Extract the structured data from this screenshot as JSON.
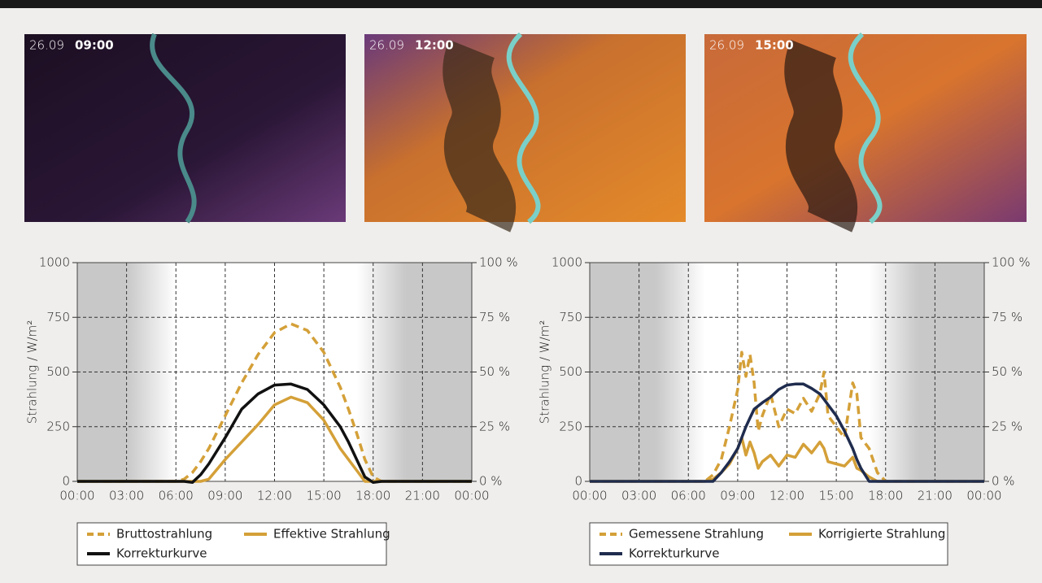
{
  "images": [
    {
      "date": "26.09",
      "time": "09:00"
    },
    {
      "date": "26.09",
      "time": "12:00"
    },
    {
      "date": "26.09",
      "time": "15:00"
    }
  ],
  "chart_data": [
    {
      "type": "line",
      "y_label": "Strahlung / W/m²",
      "legend": "below",
      "grid": true,
      "shaded": [
        [
          0,
          6
        ],
        [
          17,
          24
        ]
      ],
      "x": [
        0,
        6,
        6.5,
        7,
        7.5,
        8,
        9,
        10,
        11,
        12,
        13,
        14,
        15,
        16,
        16.5,
        17,
        17.5,
        18,
        18.5,
        24
      ],
      "xlim": [
        0,
        24
      ],
      "xticks": [
        {
          "value": 0,
          "label": "00:00"
        },
        {
          "value": 3,
          "label": "03:00"
        },
        {
          "value": 6,
          "label": "06:00"
        },
        {
          "value": 9,
          "label": "09:00"
        },
        {
          "value": 12,
          "label": "12:00"
        },
        {
          "value": 15,
          "label": "15:00"
        },
        {
          "value": 18,
          "label": "18:00"
        },
        {
          "value": 21,
          "label": "21:00"
        },
        {
          "value": 24,
          "label": "00:00"
        }
      ],
      "ylim": [
        0,
        1000
      ],
      "yticks": [
        0,
        250,
        500,
        750,
        1000
      ],
      "y2lim": [
        0,
        100
      ],
      "y2ticks": [
        {
          "value": 0,
          "label": "0 %"
        },
        {
          "value": 25,
          "label": "25 %"
        },
        {
          "value": 50,
          "label": "50 %"
        },
        {
          "value": 75,
          "label": "75 %"
        },
        {
          "value": 100,
          "label": "100 %"
        }
      ],
      "series": [
        {
          "name": "Bruttostrahlung",
          "color": "#d4a038",
          "dashed": true,
          "values": [
            0,
            0,
            10,
            40,
            90,
            150,
            300,
            450,
            580,
            680,
            720,
            690,
            590,
            430,
            330,
            220,
            100,
            20,
            0,
            0
          ]
        },
        {
          "name": "Effektive Strahlung",
          "color": "#d4a038",
          "dashed": false,
          "values": [
            0,
            0,
            0,
            0,
            0,
            10,
            100,
            180,
            260,
            350,
            385,
            360,
            280,
            150,
            100,
            50,
            0,
            0,
            0,
            0
          ]
        },
        {
          "name": "Korrekturkurve",
          "color": "#111111",
          "dashed": false,
          "values": [
            0,
            0,
            0,
            -5,
            30,
            80,
            200,
            330,
            400,
            440,
            445,
            420,
            350,
            250,
            180,
            100,
            20,
            -5,
            0,
            0
          ]
        }
      ]
    },
    {
      "type": "line",
      "y_label": "Strahlung / W/m²",
      "legend": "below",
      "grid": true,
      "shaded": [
        [
          0,
          7
        ],
        [
          17,
          24
        ]
      ],
      "x": [
        0,
        7,
        7.5,
        8,
        8.5,
        9,
        9.25,
        9.5,
        9.75,
        10,
        10.25,
        10.5,
        11,
        11.5,
        12,
        12.5,
        13,
        13.5,
        14,
        14.25,
        14.5,
        15,
        15.5,
        16,
        16.25,
        16.5,
        17,
        17.5,
        18,
        24
      ],
      "xlim": [
        0,
        24
      ],
      "xticks": [
        {
          "value": 0,
          "label": "00:00"
        },
        {
          "value": 3,
          "label": "03:00"
        },
        {
          "value": 6,
          "label": "06:00"
        },
        {
          "value": 9,
          "label": "09:00"
        },
        {
          "value": 12,
          "label": "12:00"
        },
        {
          "value": 15,
          "label": "15:00"
        },
        {
          "value": 18,
          "label": "18:00"
        },
        {
          "value": 21,
          "label": "21:00"
        },
        {
          "value": 24,
          "label": "00:00"
        }
      ],
      "ylim": [
        0,
        1000
      ],
      "yticks": [
        0,
        250,
        500,
        750,
        1000
      ],
      "y2lim": [
        0,
        100
      ],
      "y2ticks": [
        {
          "value": 0,
          "label": "0 %"
        },
        {
          "value": 25,
          "label": "25 %"
        },
        {
          "value": 50,
          "label": "50 %"
        },
        {
          "value": 75,
          "label": "75 %"
        },
        {
          "value": 100,
          "label": "100 %"
        }
      ],
      "series": [
        {
          "name": "Gemessene Strahlung",
          "color": "#d4a038",
          "dashed": true,
          "values": [
            0,
            0,
            30,
            100,
            250,
            420,
            590,
            480,
            580,
            450,
            230,
            300,
            400,
            250,
            330,
            310,
            380,
            320,
            400,
            500,
            300,
            250,
            200,
            450,
            400,
            200,
            150,
            40,
            0,
            0
          ]
        },
        {
          "name": "Korrigierte Strahlung",
          "color": "#d4a038",
          "dashed": false,
          "values": [
            0,
            0,
            10,
            40,
            80,
            150,
            200,
            120,
            180,
            130,
            60,
            90,
            120,
            70,
            120,
            110,
            170,
            130,
            180,
            150,
            90,
            80,
            70,
            110,
            60,
            50,
            20,
            0,
            0,
            0
          ]
        },
        {
          "name": "Korrekturkurve",
          "color": "#1f2c4e",
          "dashed": false,
          "values": [
            0,
            0,
            0,
            40,
            90,
            150,
            200,
            250,
            290,
            330,
            345,
            360,
            385,
            420,
            440,
            445,
            445,
            425,
            400,
            375,
            350,
            300,
            230,
            150,
            100,
            60,
            0,
            0,
            0,
            0
          ]
        }
      ]
    }
  ]
}
